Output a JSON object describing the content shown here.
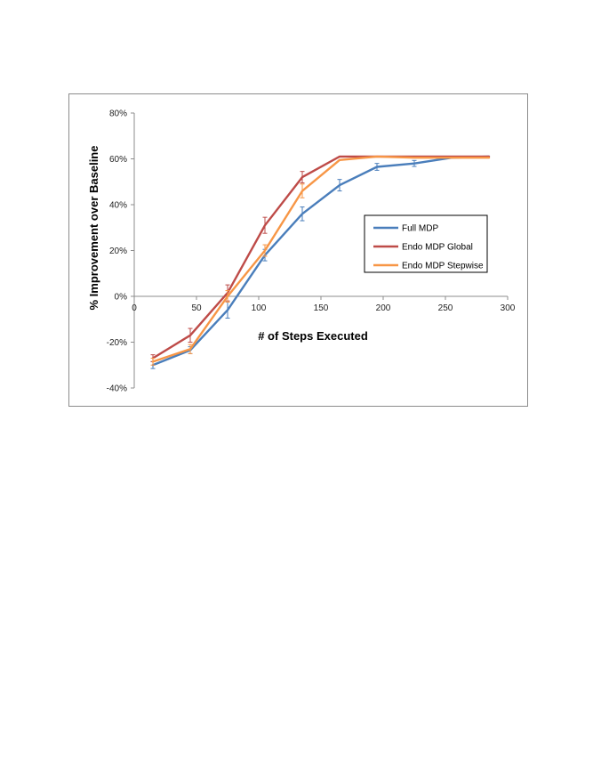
{
  "chart_data": {
    "type": "line",
    "title": "",
    "xlabel": "# of Steps Executed",
    "ylabel": "% Improvement over Baseline",
    "xlim": [
      0,
      300
    ],
    "ylim": [
      -40,
      80
    ],
    "xticks": [
      0,
      50,
      100,
      150,
      200,
      250,
      300
    ],
    "yticks": [
      -40,
      -20,
      0,
      20,
      40,
      60,
      80
    ],
    "xtick_labels": [
      "0",
      "50",
      "100",
      "150",
      "200",
      "250",
      "300"
    ],
    "ytick_labels": [
      "-40%",
      "-20%",
      "0%",
      "20%",
      "40%",
      "60%",
      "80%"
    ],
    "grid": false,
    "legend_position": "right",
    "x": [
      15,
      45,
      75,
      105,
      135,
      165,
      195,
      225,
      255,
      285
    ],
    "series": [
      {
        "name": "Full MDP",
        "color": "#4a7ebb",
        "values": [
          -30,
          -23.5,
          -6,
          18,
          36,
          48.5,
          56.5,
          58,
          60.5,
          61
        ],
        "errors": [
          1.5,
          1.5,
          3.5,
          2.5,
          3,
          2.5,
          1.5,
          1.3,
          0,
          0
        ]
      },
      {
        "name": "Endo MDP Global",
        "color": "#be4b48",
        "values": [
          -27,
          -17,
          1.5,
          31,
          52,
          61,
          61,
          61,
          61,
          61
        ],
        "errors": [
          1.5,
          3,
          3.5,
          3.5,
          2.5,
          0,
          0,
          0,
          0,
          0
        ]
      },
      {
        "name": "Endo MDP Stepwise",
        "color": "#f79646",
        "values": [
          -28.5,
          -23,
          0,
          20,
          46,
          59.5,
          61,
          60.5,
          60.5,
          60.5
        ],
        "errors": [
          1.5,
          2,
          2.5,
          2.5,
          3,
          0,
          0,
          0,
          0,
          0
        ]
      }
    ]
  }
}
